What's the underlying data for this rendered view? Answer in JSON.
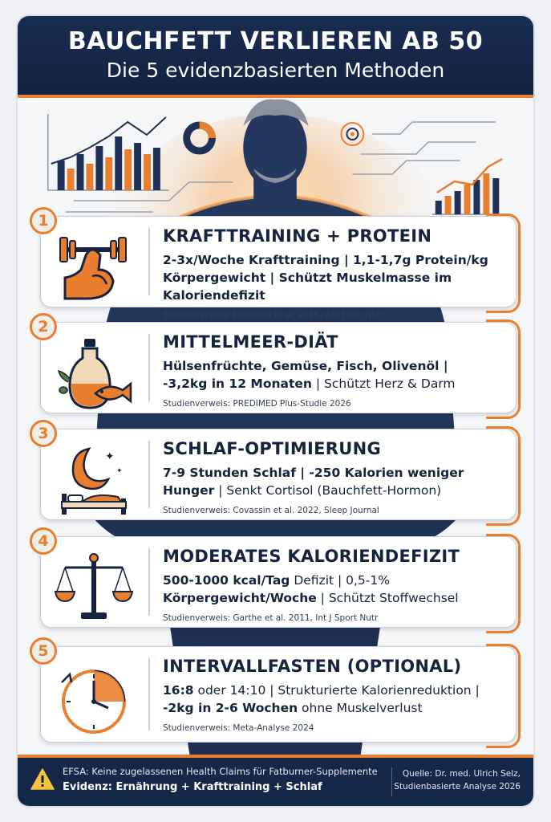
{
  "header": {
    "title_line1": "BAUCHFETT VERLIEREN AB 50",
    "title_line2": "Die 5 evidenzbasierten Methoden"
  },
  "colors": {
    "navy": "#15233f",
    "orange": "#e97f2e",
    "background": "#f5f6f8"
  },
  "cards": [
    {
      "number": "1",
      "icon": "flexing-arm-dumbbell-icon",
      "title": "KRAFTTRAINING + PROTEIN",
      "body_b1": "2-3x/Woche Krafttraining | 1,1-1,7g Protein/kg",
      "body_n1": "",
      "body_b2": "Körpergewicht | Schützt Muskelmasse im Kaloriendefizit",
      "body_n2": "",
      "ref": "Studienverweis: Longland et al. 2016, Am J Clin Nutr"
    },
    {
      "number": "2",
      "icon": "olive-oil-fish-icon",
      "title": "MITTELMEER-DIÄT",
      "body_b1": "Hülsenfrüchte, Gemüse, Fisch, Olivenöl |",
      "body_n1": "",
      "body_b2": "-3,2kg in 12 Monaten",
      "body_n2": " | Schützt Herz & Darm",
      "ref": "Studienverweis: PREDIMED Plus-Studie 2026"
    },
    {
      "number": "3",
      "icon": "moon-bed-icon",
      "title": "SCHLAF-OPTIMIERUNG",
      "body_b1": "7-9 Stunden Schlaf | -250 Kalorien weniger",
      "body_n1": "",
      "body_b2": "Hunger",
      "body_n2": " | Senkt Cortisol (Bauchfett-Hormon)",
      "ref": "Studienverweis: Covassin et al. 2022, Sleep Journal"
    },
    {
      "number": "4",
      "icon": "balance-scale-icon",
      "title": "MODERATES KALORIENDEFIZIT",
      "body_b1": "500-1000 kcal/Tag",
      "body_n1": " Defizit | 0,5-1%",
      "body_b2": "Körpergewicht/Woche",
      "body_n2": " | Schützt Stoffwechsel",
      "ref": "Studienverweis: Garthe et al. 2011, Int J Sport Nutr"
    },
    {
      "number": "5",
      "icon": "clock-icon",
      "title": "INTERVALLFASTEN (OPTIONAL)",
      "body_b1": "16:8",
      "body_n1": " oder 14:10 | Strukturierte Kalorienreduktion |",
      "body_b2": "-2kg in 2-6 Wochen",
      "body_n2": " ohne Muskelverlust",
      "ref": "Studienverweis: Meta-Analyse 2024"
    }
  ],
  "footer": {
    "note": "EFSA: Keine zugelassenen Health Claims für Fatburner-Supplemente",
    "evidence": "Evidenz: Ernährung + Krafttraining + Schlaf",
    "source_line1": "Quelle: Dr. med. Ulrich Selz,",
    "source_line2": "Studienbasierte Analyse 2026"
  }
}
